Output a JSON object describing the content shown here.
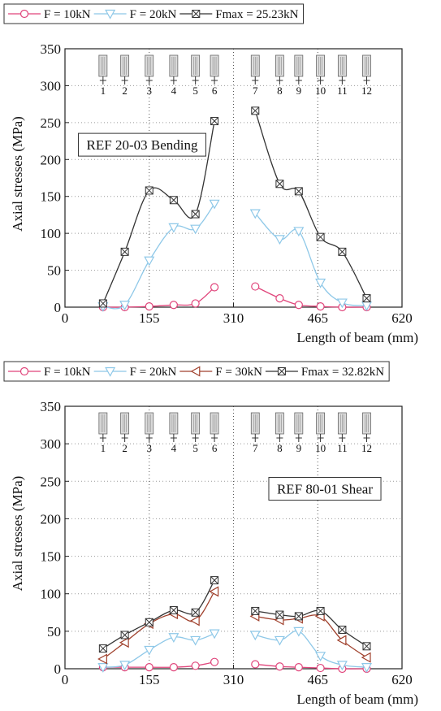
{
  "chart_data": [
    {
      "type": "line",
      "annotation": "REF 20-03 Bending",
      "xlabel": "Length of beam (mm)",
      "ylabel": "Axial stresses (MPa)",
      "xlim": [
        0,
        620
      ],
      "xticks": [
        0,
        155,
        310,
        465,
        620
      ],
      "ylim": [
        0,
        350
      ],
      "yticks": [
        0,
        50,
        100,
        150,
        200,
        250,
        300,
        350
      ],
      "grid": true,
      "gauge_labels": [
        "1",
        "2",
        "3",
        "4",
        "5",
        "6",
        "7",
        "8",
        "9",
        "10",
        "11",
        "12"
      ],
      "x": [
        70,
        110,
        155,
        200,
        240,
        275,
        310,
        350,
        395,
        430,
        470,
        510,
        555
      ],
      "series": [
        {
          "name": "F = 10kN",
          "color": "#e0457b",
          "marker": "circle",
          "values": [
            0,
            0,
            1,
            3,
            5,
            27,
            null,
            28,
            12,
            3,
            1,
            0,
            0
          ]
        },
        {
          "name": "F = 20kN",
          "color": "#8ec8e8",
          "marker": "triangle-down",
          "values": [
            1,
            3,
            63,
            108,
            106,
            140,
            null,
            127,
            92,
            103,
            33,
            6,
            2
          ]
        },
        {
          "name": "Fmax = 25.23kN",
          "color": "#333333",
          "marker": "boxed-x",
          "values": [
            5,
            75,
            158,
            145,
            126,
            252,
            null,
            266,
            167,
            157,
            95,
            75,
            12
          ]
        }
      ]
    },
    {
      "type": "line",
      "annotation": "REF 80-01 Shear",
      "xlabel": "Length of beam (mm)",
      "ylabel": "Axial stresses (MPa)",
      "xlim": [
        0,
        620
      ],
      "xticks": [
        0,
        155,
        310,
        465,
        620
      ],
      "ylim": [
        0,
        350
      ],
      "yticks": [
        0,
        50,
        100,
        150,
        200,
        250,
        300,
        350
      ],
      "grid": true,
      "gauge_labels": [
        "1",
        "2",
        "3",
        "4",
        "5",
        "6",
        "7",
        "8",
        "9",
        "10",
        "11",
        "12"
      ],
      "x": [
        70,
        110,
        155,
        200,
        240,
        275,
        310,
        350,
        395,
        430,
        470,
        510,
        555
      ],
      "series": [
        {
          "name": "F = 10kN",
          "color": "#e0457b",
          "marker": "circle",
          "values": [
            2,
            2,
            2,
            2,
            4,
            9,
            null,
            6,
            3,
            2,
            1,
            0,
            0
          ]
        },
        {
          "name": "F = 20kN",
          "color": "#8ec8e8",
          "marker": "triangle-down",
          "values": [
            2,
            5,
            25,
            42,
            38,
            47,
            null,
            45,
            38,
            50,
            17,
            5,
            2
          ]
        },
        {
          "name": "F = 30kN",
          "color": "#a0412d",
          "marker": "triangle-left",
          "values": [
            13,
            35,
            60,
            73,
            64,
            103,
            null,
            70,
            65,
            67,
            70,
            38,
            15
          ]
        },
        {
          "name": "Fmax = 32.82kN",
          "color": "#333333",
          "marker": "boxed-x",
          "values": [
            27,
            45,
            62,
            78,
            75,
            118,
            null,
            77,
            72,
            70,
            77,
            52,
            30
          ]
        }
      ]
    }
  ]
}
